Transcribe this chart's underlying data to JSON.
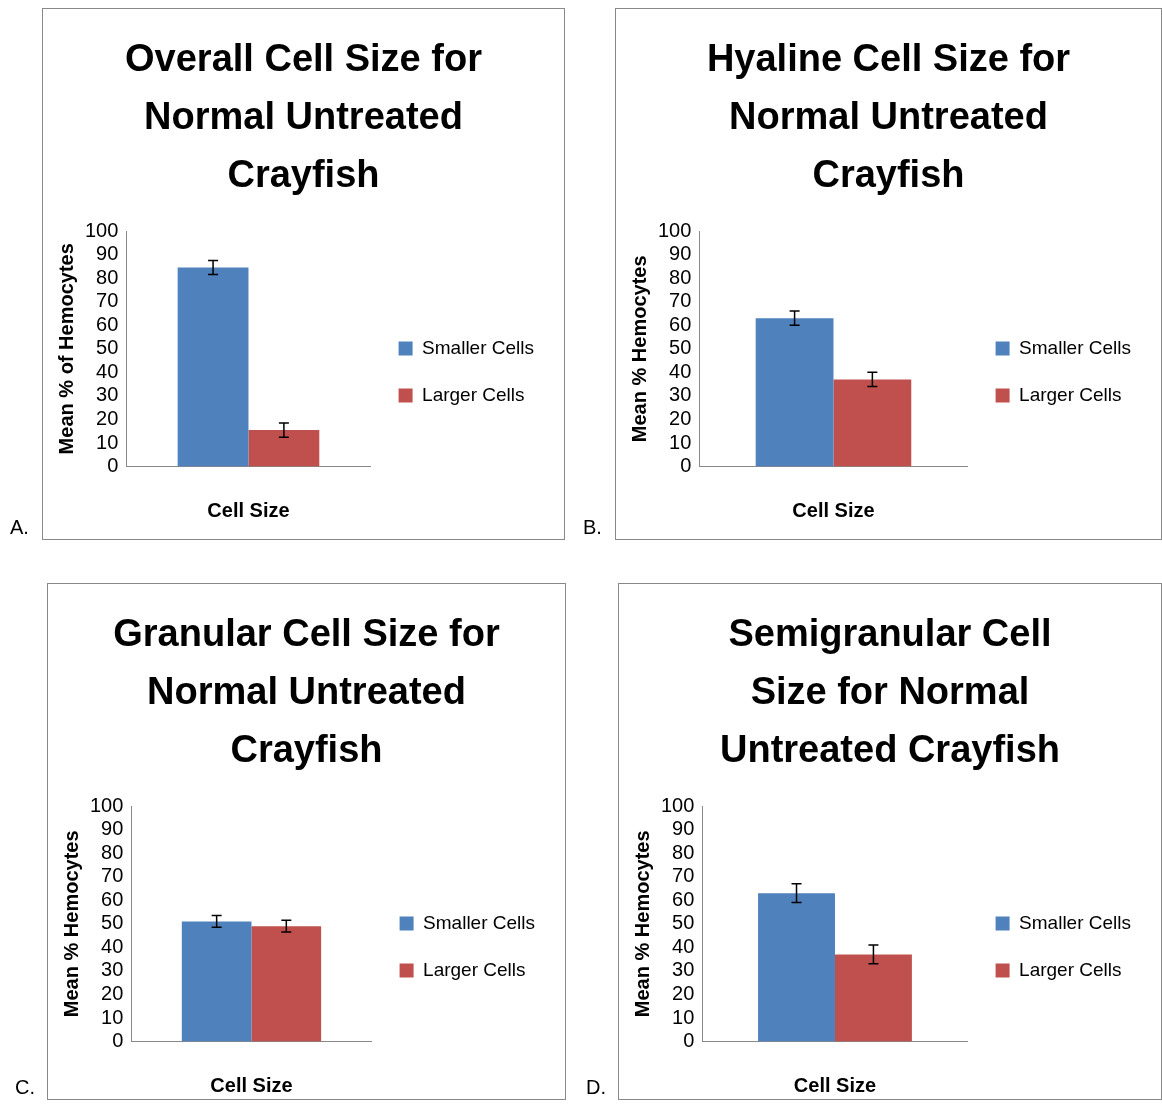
{
  "chart_data": [
    {
      "type": "bar",
      "title": "Overall Cell Size for Normal Untreated Crayfish",
      "xlabel": "Cell Size",
      "ylabel": "Mean % of Hemocytes",
      "categories": [
        null
      ],
      "series": [
        {
          "name": "Smaller Cells",
          "color": "#4f81bd",
          "values": [
            84.5
          ],
          "errors": [
            3
          ]
        },
        {
          "name": "Larger Cells",
          "color": "#c0504d",
          "values": [
            15.5
          ],
          "errors": [
            3
          ]
        }
      ],
      "ylim": [
        0,
        100
      ],
      "yticks": [
        0,
        10,
        20,
        30,
        40,
        50,
        60,
        70,
        80,
        90,
        100
      ],
      "legend": "right",
      "annotations": [
        "A."
      ]
    },
    {
      "type": "bar",
      "title": "Hyaline Cell Size for Normal Untreated Crayfish",
      "xlabel": "Cell Size",
      "ylabel": "Mean % Hemocytes",
      "categories": [
        null
      ],
      "series": [
        {
          "name": "Smaller Cells",
          "color": "#4f81bd",
          "values": [
            63
          ],
          "errors": [
            3
          ]
        },
        {
          "name": "Larger Cells",
          "color": "#c0504d",
          "values": [
            37
          ],
          "errors": [
            3
          ]
        }
      ],
      "ylim": [
        0,
        100
      ],
      "yticks": [
        0,
        10,
        20,
        30,
        40,
        50,
        60,
        70,
        80,
        90,
        100
      ],
      "legend": "right",
      "annotations": [
        "B."
      ]
    },
    {
      "type": "bar",
      "title": "Granular Cell Size for Normal Untreated Crayfish",
      "xlabel": "Cell Size",
      "ylabel": "Mean % Hemocytes",
      "categories": [
        null
      ],
      "series": [
        {
          "name": "Smaller Cells",
          "color": "#4f81bd",
          "values": [
            51
          ],
          "errors": [
            2.5
          ]
        },
        {
          "name": "Larger Cells",
          "color": "#c0504d",
          "values": [
            49
          ],
          "errors": [
            2.5
          ]
        }
      ],
      "ylim": [
        0,
        100
      ],
      "yticks": [
        0,
        10,
        20,
        30,
        40,
        50,
        60,
        70,
        80,
        90,
        100
      ],
      "legend": "right",
      "annotations": [
        "C."
      ]
    },
    {
      "type": "bar",
      "title": "Semigranular Cell Size for Normal Untreated Crayfish",
      "xlabel": "Cell Size",
      "ylabel": "Mean % Hemocytes",
      "categories": [
        null
      ],
      "series": [
        {
          "name": "Smaller Cells",
          "color": "#4f81bd",
          "values": [
            63
          ],
          "errors": [
            4
          ]
        },
        {
          "name": "Larger Cells",
          "color": "#c0504d",
          "values": [
            37
          ],
          "errors": [
            4
          ]
        }
      ],
      "ylim": [
        0,
        100
      ],
      "yticks": [
        0,
        10,
        20,
        30,
        40,
        50,
        60,
        70,
        80,
        90,
        100
      ],
      "legend": "right",
      "annotations": [
        "D."
      ]
    }
  ]
}
